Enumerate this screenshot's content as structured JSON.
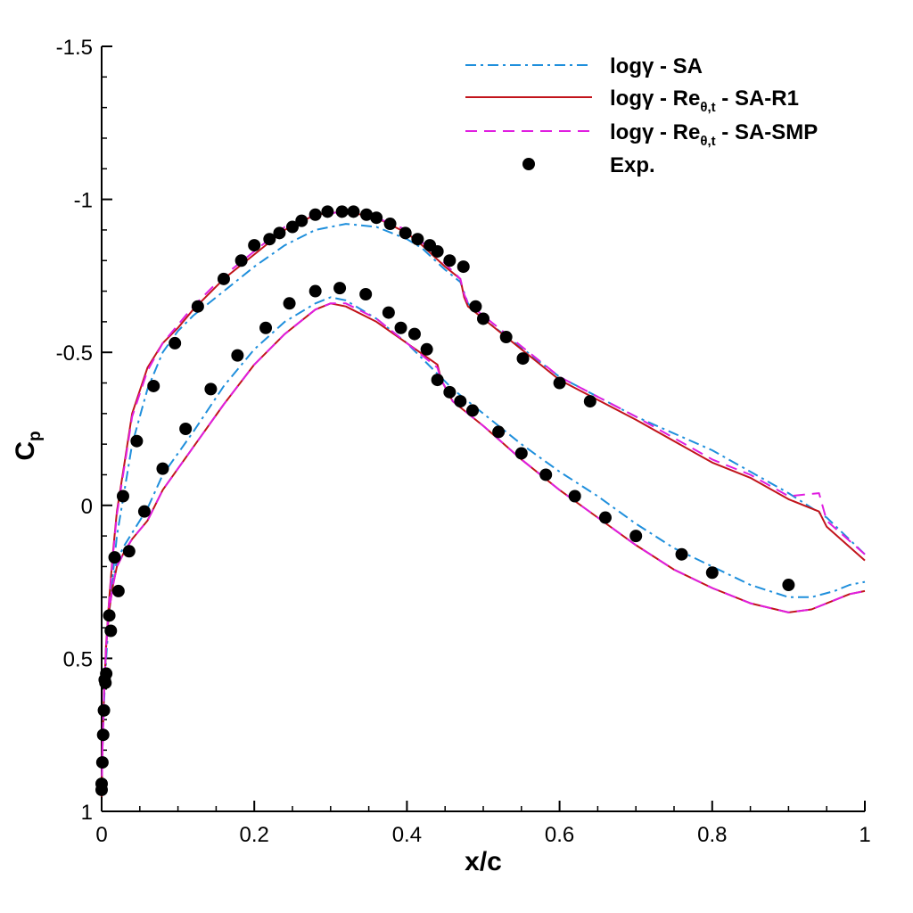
{
  "chart_data": {
    "type": "line",
    "title": "",
    "xlabel": "x/c",
    "ylabel": "C",
    "ylabel_subscript": "p",
    "xlim": [
      0,
      1
    ],
    "ylim": [
      1,
      -1.5
    ],
    "y_inverted": true,
    "x_ticks": [
      0,
      0.2,
      0.4,
      0.6,
      0.8,
      1
    ],
    "x_tick_labels": [
      "0",
      "0.2",
      "0.4",
      "0.6",
      "0.8",
      "1"
    ],
    "y_ticks": [
      -1.5,
      -1,
      -0.5,
      0,
      0.5,
      1
    ],
    "y_tick_labels": [
      "-1.5",
      "-1",
      "-0.5",
      "0",
      "0.5",
      "1"
    ],
    "grid": false,
    "legend_position": "top-right",
    "legend": [
      {
        "key": "sa",
        "text": "logγ - SA",
        "sub": "",
        "suffix": ""
      },
      {
        "key": "r1",
        "text": "logγ - Re",
        "sub": "θ,t",
        "suffix": " - SA-R1"
      },
      {
        "key": "smp",
        "text": "logγ - Re",
        "sub": "θ,t",
        "suffix": " - SA-SMP"
      },
      {
        "key": "exp",
        "text": "Exp.",
        "sub": "",
        "suffix": ""
      }
    ],
    "series": [
      {
        "name": "logγ - SA",
        "style": "dashdot",
        "color": "#1f8fdc",
        "x": [
          1.0,
          0.95,
          0.9,
          0.85,
          0.8,
          0.7,
          0.6,
          0.5,
          0.48,
          0.47,
          0.45,
          0.42,
          0.4,
          0.36,
          0.32,
          0.28,
          0.24,
          0.2,
          0.16,
          0.12,
          0.1,
          0.08,
          0.06,
          0.04,
          0.03,
          0.02,
          0.015,
          0.01,
          0.006,
          0.003,
          0.001,
          0.0,
          0.001,
          0.003,
          0.006,
          0.01,
          0.015,
          0.02,
          0.03,
          0.04,
          0.06,
          0.08,
          0.1,
          0.12,
          0.16,
          0.2,
          0.24,
          0.28,
          0.3,
          0.32,
          0.36,
          0.4,
          0.44,
          0.46,
          0.5,
          0.55,
          0.6,
          0.65,
          0.7,
          0.75,
          0.8,
          0.85,
          0.9,
          0.93,
          0.96,
          0.98,
          1.0
        ],
        "y": [
          0.16,
          0.04,
          -0.04,
          -0.11,
          -0.18,
          -0.29,
          -0.42,
          -0.61,
          -0.66,
          -0.73,
          -0.77,
          -0.84,
          -0.87,
          -0.91,
          -0.92,
          -0.9,
          -0.85,
          -0.78,
          -0.7,
          -0.62,
          -0.57,
          -0.5,
          -0.38,
          -0.2,
          -0.05,
          0.1,
          0.22,
          0.35,
          0.5,
          0.65,
          0.8,
          0.95,
          0.8,
          0.62,
          0.45,
          0.32,
          0.24,
          0.18,
          0.13,
          0.09,
          0.01,
          -0.1,
          -0.17,
          -0.24,
          -0.39,
          -0.51,
          -0.6,
          -0.66,
          -0.68,
          -0.67,
          -0.61,
          -0.53,
          -0.43,
          -0.38,
          -0.3,
          -0.2,
          -0.11,
          -0.03,
          0.06,
          0.14,
          0.2,
          0.26,
          0.3,
          0.3,
          0.28,
          0.26,
          0.25
        ]
      },
      {
        "name": "logγ - Re θ,t - SA-R1",
        "style": "solid",
        "color": "#c2141b",
        "x": [
          1.0,
          0.95,
          0.94,
          0.9,
          0.85,
          0.8,
          0.7,
          0.6,
          0.5,
          0.48,
          0.475,
          0.47,
          0.45,
          0.42,
          0.4,
          0.36,
          0.32,
          0.28,
          0.24,
          0.2,
          0.16,
          0.12,
          0.1,
          0.08,
          0.06,
          0.04,
          0.03,
          0.02,
          0.015,
          0.01,
          0.006,
          0.003,
          0.001,
          0.0,
          0.001,
          0.003,
          0.006,
          0.01,
          0.015,
          0.02,
          0.03,
          0.04,
          0.06,
          0.08,
          0.1,
          0.12,
          0.16,
          0.2,
          0.24,
          0.28,
          0.3,
          0.32,
          0.36,
          0.4,
          0.44,
          0.445,
          0.46,
          0.5,
          0.55,
          0.6,
          0.65,
          0.7,
          0.75,
          0.8,
          0.85,
          0.9,
          0.93,
          0.96,
          0.98,
          1.0
        ],
        "y": [
          0.18,
          0.07,
          0.02,
          -0.02,
          -0.09,
          -0.14,
          -0.28,
          -0.41,
          -0.61,
          -0.65,
          -0.68,
          -0.74,
          -0.78,
          -0.85,
          -0.89,
          -0.94,
          -0.96,
          -0.95,
          -0.9,
          -0.82,
          -0.74,
          -0.64,
          -0.58,
          -0.53,
          -0.45,
          -0.3,
          -0.14,
          0.02,
          0.15,
          0.3,
          0.45,
          0.62,
          0.78,
          0.95,
          0.8,
          0.62,
          0.46,
          0.34,
          0.26,
          0.2,
          0.15,
          0.11,
          0.05,
          -0.05,
          -0.12,
          -0.19,
          -0.33,
          -0.46,
          -0.56,
          -0.64,
          -0.66,
          -0.65,
          -0.6,
          -0.53,
          -0.46,
          -0.41,
          -0.34,
          -0.26,
          -0.15,
          -0.05,
          0.04,
          0.13,
          0.21,
          0.27,
          0.32,
          0.35,
          0.34,
          0.31,
          0.29,
          0.28
        ]
      },
      {
        "name": "logγ - Re θ,t - SA-SMP",
        "style": "dashed",
        "color": "#e01ee0",
        "x": [
          1.0,
          0.95,
          0.94,
          0.9,
          0.85,
          0.8,
          0.7,
          0.6,
          0.5,
          0.48,
          0.475,
          0.47,
          0.45,
          0.42,
          0.4,
          0.36,
          0.32,
          0.28,
          0.24,
          0.2,
          0.16,
          0.12,
          0.1,
          0.08,
          0.06,
          0.04,
          0.03,
          0.02,
          0.015,
          0.01,
          0.006,
          0.003,
          0.001,
          0.0,
          0.001,
          0.003,
          0.006,
          0.01,
          0.015,
          0.02,
          0.03,
          0.04,
          0.06,
          0.08,
          0.1,
          0.12,
          0.16,
          0.2,
          0.24,
          0.28,
          0.3,
          0.32,
          0.36,
          0.4,
          0.44,
          0.445,
          0.46,
          0.5,
          0.55,
          0.6,
          0.65,
          0.7,
          0.75,
          0.8,
          0.85,
          0.9,
          0.93,
          0.96,
          0.98,
          1.0
        ],
        "y": [
          0.16,
          0.05,
          -0.04,
          -0.03,
          -0.1,
          -0.15,
          -0.29,
          -0.42,
          -0.62,
          -0.66,
          -0.69,
          -0.74,
          -0.79,
          -0.86,
          -0.9,
          -0.94,
          -0.96,
          -0.95,
          -0.91,
          -0.83,
          -0.75,
          -0.65,
          -0.59,
          -0.53,
          -0.44,
          -0.29,
          -0.13,
          0.03,
          0.16,
          0.31,
          0.46,
          0.62,
          0.79,
          0.95,
          0.8,
          0.62,
          0.46,
          0.34,
          0.26,
          0.2,
          0.15,
          0.11,
          0.05,
          -0.05,
          -0.12,
          -0.19,
          -0.33,
          -0.46,
          -0.56,
          -0.64,
          -0.66,
          -0.66,
          -0.61,
          -0.53,
          -0.45,
          -0.41,
          -0.34,
          -0.26,
          -0.15,
          -0.05,
          0.04,
          0.13,
          0.21,
          0.27,
          0.32,
          0.35,
          0.34,
          0.31,
          0.29,
          0.28
        ]
      },
      {
        "name": "Exp.",
        "style": "markers",
        "color": "#000000",
        "x": [
          0.0,
          0.0,
          0.001,
          0.002,
          0.003,
          0.004,
          0.005,
          0.006,
          0.01,
          0.012,
          0.017,
          0.022,
          0.028,
          0.036,
          0.046,
          0.056,
          0.068,
          0.08,
          0.096,
          0.11,
          0.126,
          0.143,
          0.16,
          0.178,
          0.183,
          0.2,
          0.215,
          0.22,
          0.233,
          0.246,
          0.25,
          0.262,
          0.28,
          0.28,
          0.296,
          0.312,
          0.315,
          0.33,
          0.346,
          0.347,
          0.36,
          0.376,
          0.378,
          0.392,
          0.398,
          0.41,
          0.414,
          0.426,
          0.43,
          0.44,
          0.44,
          0.456,
          0.456,
          0.47,
          0.474,
          0.486,
          0.49,
          0.5,
          0.52,
          0.53,
          0.55,
          0.552,
          0.582,
          0.6,
          0.62,
          0.64,
          0.66,
          0.7,
          0.76,
          0.8,
          0.9
        ],
        "y": [
          0.93,
          0.91,
          0.84,
          0.75,
          0.67,
          0.57,
          0.58,
          0.55,
          0.36,
          0.41,
          0.17,
          0.28,
          -0.03,
          0.15,
          -0.21,
          0.02,
          -0.39,
          -0.12,
          -0.53,
          -0.25,
          -0.65,
          -0.38,
          -0.74,
          -0.49,
          -0.8,
          -0.85,
          -0.58,
          -0.87,
          -0.89,
          -0.66,
          -0.91,
          -0.93,
          -0.7,
          -0.95,
          -0.96,
          -0.71,
          -0.96,
          -0.96,
          -0.69,
          -0.95,
          -0.94,
          -0.63,
          -0.92,
          -0.58,
          -0.89,
          -0.56,
          -0.87,
          -0.51,
          -0.85,
          -0.41,
          -0.83,
          -0.37,
          -0.8,
          -0.34,
          -0.78,
          -0.31,
          -0.65,
          -0.61,
          -0.24,
          -0.55,
          -0.17,
          -0.48,
          -0.1,
          -0.4,
          -0.03,
          -0.34,
          0.04,
          0.1,
          0.16,
          0.22,
          0.26
        ]
      }
    ]
  }
}
